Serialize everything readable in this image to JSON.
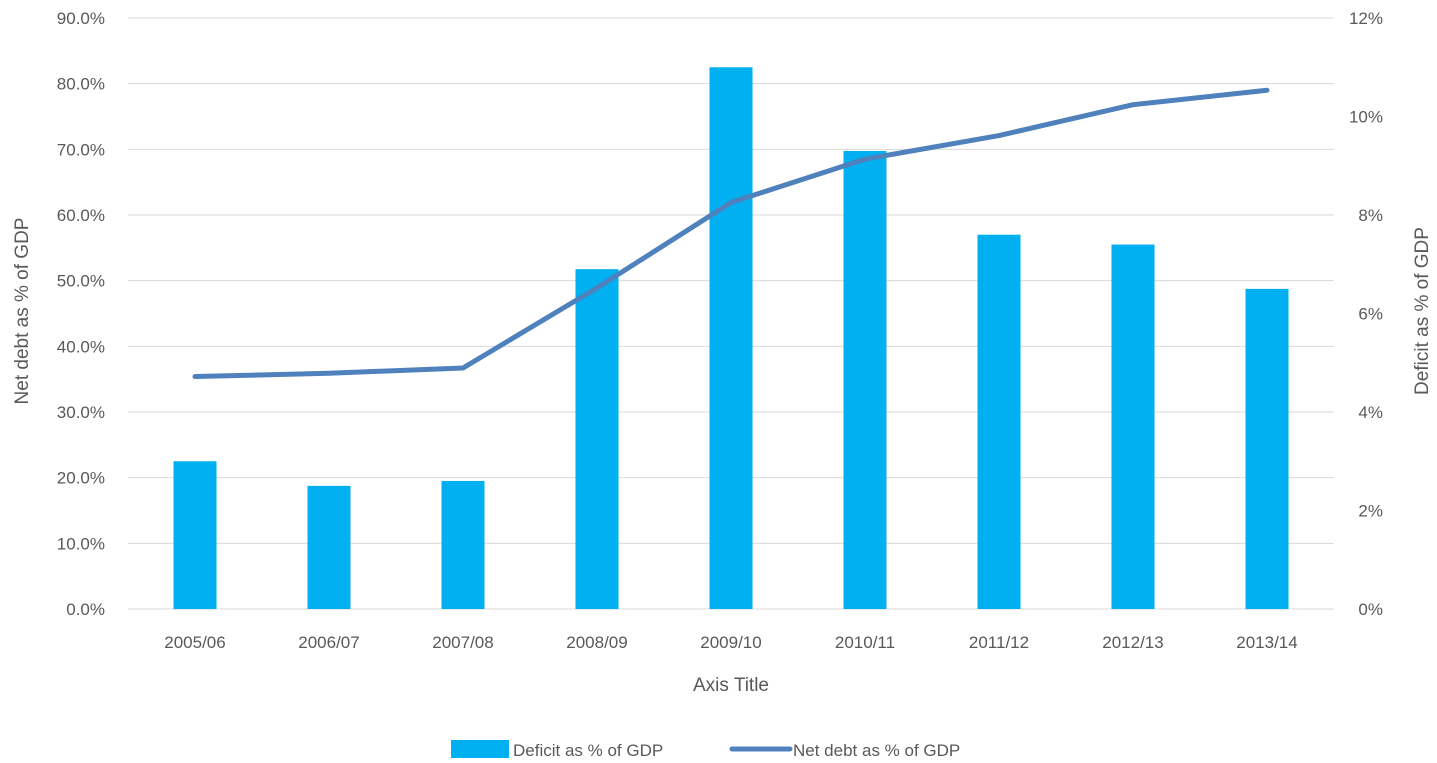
{
  "chart_data": {
    "type": "bar",
    "categories": [
      "2005/06",
      "2006/07",
      "2007/08",
      "2008/09",
      "2009/10",
      "2010/11",
      "2011/12",
      "2012/13",
      "2013/14"
    ],
    "series": [
      {
        "name": "Deficit as % of GDP",
        "type": "bar",
        "axis": "right",
        "color": "#00b0f0",
        "values": [
          3.0,
          2.5,
          2.6,
          6.9,
          11.0,
          9.3,
          7.6,
          7.4,
          6.5
        ]
      },
      {
        "name": "Net debt as % of GDP",
        "type": "line",
        "axis": "left",
        "color": "#4f81bd",
        "values": [
          35.4,
          35.9,
          36.7,
          48.9,
          61.9,
          68.5,
          72.1,
          76.8,
          79.0
        ]
      }
    ],
    "xlabel": "Axis Title",
    "ylabel": "Net debt as % of GDP",
    "y2label": "Deficit as % of GDP",
    "ylim": [
      0,
      90
    ],
    "y2lim": [
      0,
      12
    ],
    "yticks": [
      "0.0%",
      "10.0%",
      "20.0%",
      "30.0%",
      "40.0%",
      "50.0%",
      "60.0%",
      "70.0%",
      "80.0%",
      "90.0%"
    ],
    "y2ticks": [
      "0%",
      "2%",
      "4%",
      "6%",
      "8%",
      "10%",
      "12%"
    ],
    "grid": true,
    "legend_position": "bottom"
  }
}
